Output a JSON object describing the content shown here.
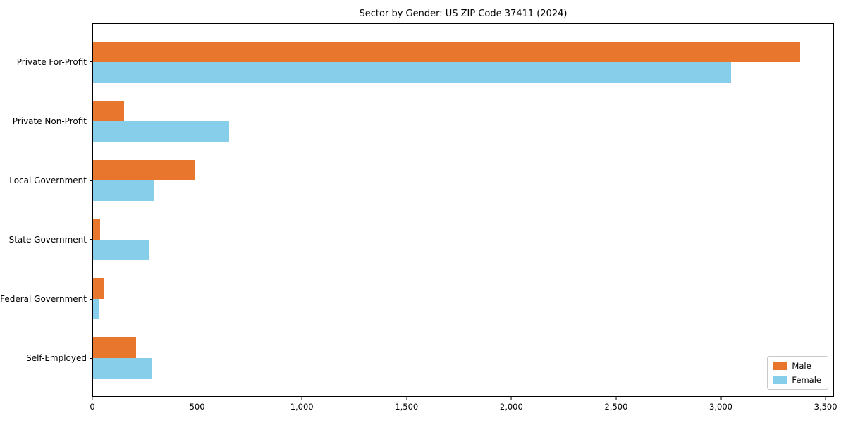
{
  "chart_data": {
    "type": "bar",
    "orientation": "horizontal",
    "title": "Sector by Gender: US ZIP Code 37411 (2024)",
    "categories": [
      "Private For-Profit",
      "Private Non-Profit",
      "Local Government",
      "State Government",
      "Federal Government",
      "Self-Employed"
    ],
    "series": [
      {
        "name": "Male",
        "color": "#e8762d",
        "values": [
          3380,
          150,
          485,
          35,
          55,
          205
        ]
      },
      {
        "name": "Female",
        "color": "#87ceeb",
        "values": [
          3050,
          650,
          290,
          270,
          30,
          280
        ]
      }
    ],
    "xlabel": "",
    "ylabel": "",
    "xlim": [
      0,
      3540
    ],
    "xticks": [
      0,
      500,
      1000,
      1500,
      2000,
      2500,
      3000,
      3500
    ],
    "xtick_labels": [
      "0",
      "500",
      "1,000",
      "1,500",
      "2,000",
      "2,500",
      "3,000",
      "3,500"
    ],
    "grid": false,
    "legend": {
      "position": "lower right"
    },
    "layout": {
      "category_axis_span": 6.3,
      "category_offset": 0.65,
      "bar_height_units": 0.35
    }
  }
}
